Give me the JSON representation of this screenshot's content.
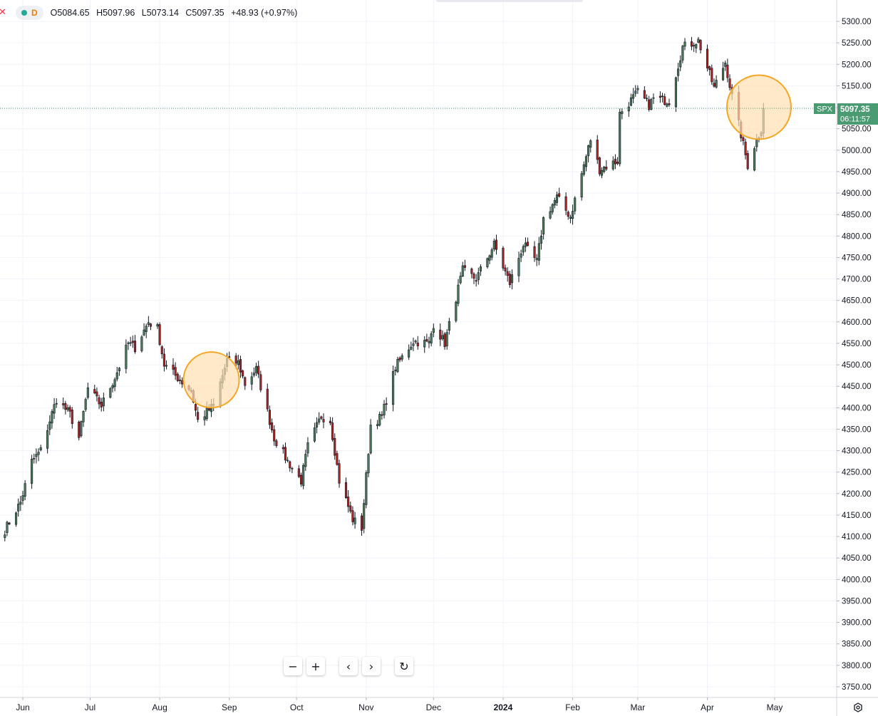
{
  "legend": {
    "timeframe": "D",
    "open": "O5084.65",
    "high": "H5097.96",
    "low": "L5073.14",
    "close": "C5097.35",
    "change": "+48.93 (+0.97%)",
    "status_color": "#22ab94"
  },
  "price_label": {
    "symbol": "SPX",
    "price": "5097.35",
    "countdown": "06:11:57",
    "color": "#4a9a72"
  },
  "toolbar": {
    "zoom_out": "−",
    "zoom_in": "+",
    "scroll_left": "‹",
    "scroll_right": "›",
    "reset": "↻"
  },
  "colors": {
    "up": "#4a7c59",
    "down": "#b22222",
    "grid": "#f0f3fa",
    "highlight_fill": "#ffe0b2",
    "highlight_stroke": "#f5a623"
  },
  "chart_data": {
    "type": "candlestick",
    "y_ticks": [
      "5300.00",
      "5250.00",
      "5200.00",
      "5150.00",
      "5100.00",
      "5050.00",
      "5000.00",
      "4950.00",
      "4900.00",
      "4850.00",
      "4800.00",
      "4750.00",
      "4700.00",
      "4650.00",
      "4600.00",
      "4550.00",
      "4500.00",
      "4450.00",
      "4400.00",
      "4350.00",
      "4300.00",
      "4250.00",
      "4200.00",
      "4150.00",
      "4100.00",
      "4050.00",
      "4000.00",
      "3950.00",
      "3900.00",
      "3850.00",
      "3800.00",
      "3750.00"
    ],
    "ylim": [
      3730,
      5320
    ],
    "x_ticks": [
      {
        "label": "Jun",
        "date": "2023-06-01"
      },
      {
        "label": "Jul",
        "date": "2023-07-01"
      },
      {
        "label": "Aug",
        "date": "2023-08-01"
      },
      {
        "label": "Sep",
        "date": "2023-09-01"
      },
      {
        "label": "Oct",
        "date": "2023-10-01"
      },
      {
        "label": "Nov",
        "date": "2023-11-01"
      },
      {
        "label": "Dec",
        "date": "2023-12-01"
      },
      {
        "label": "2024",
        "date": "2024-01-01"
      },
      {
        "label": "Feb",
        "date": "2024-02-01"
      },
      {
        "label": "Mar",
        "date": "2024-03-01"
      },
      {
        "label": "Apr",
        "date": "2024-04-01"
      },
      {
        "label": "May",
        "date": "2024-05-01"
      }
    ],
    "current_price": 5097.35,
    "waypoints": [
      [
        "2023-05-24",
        4115
      ],
      [
        "2023-05-31",
        4180
      ],
      [
        "2023-06-05",
        4275
      ],
      [
        "2023-06-09",
        4300
      ],
      [
        "2023-06-13",
        4370
      ],
      [
        "2023-06-16",
        4420
      ],
      [
        "2023-06-22",
        4385
      ],
      [
        "2023-06-26",
        4330
      ],
      [
        "2023-06-30",
        4445
      ],
      [
        "2023-07-06",
        4405
      ],
      [
        "2023-07-12",
        4470
      ],
      [
        "2023-07-18",
        4550
      ],
      [
        "2023-07-21",
        4540
      ],
      [
        "2023-07-27",
        4600
      ],
      [
        "2023-07-31",
        4585
      ],
      [
        "2023-08-03",
        4500
      ],
      [
        "2023-08-10",
        4465
      ],
      [
        "2023-08-15",
        4440
      ],
      [
        "2023-08-18",
        4370
      ],
      [
        "2023-08-25",
        4405
      ],
      [
        "2023-08-31",
        4510
      ],
      [
        "2023-09-05",
        4505
      ],
      [
        "2023-09-08",
        4455
      ],
      [
        "2023-09-13",
        4490
      ],
      [
        "2023-09-15",
        4450
      ],
      [
        "2023-09-21",
        4330
      ],
      [
        "2023-09-27",
        4275
      ],
      [
        "2023-10-03",
        4230
      ],
      [
        "2023-10-06",
        4310
      ],
      [
        "2023-10-12",
        4380
      ],
      [
        "2023-10-16",
        4370
      ],
      [
        "2023-10-20",
        4230
      ],
      [
        "2023-10-26",
        4140
      ],
      [
        "2023-10-30",
        4120
      ],
      [
        "2023-11-03",
        4360
      ],
      [
        "2023-11-08",
        4380
      ],
      [
        "2023-11-14",
        4495
      ],
      [
        "2023-11-22",
        4555
      ],
      [
        "2023-11-29",
        4550
      ],
      [
        "2023-12-01",
        4595
      ],
      [
        "2023-12-06",
        4550
      ],
      [
        "2023-12-14",
        4720
      ],
      [
        "2023-12-20",
        4700
      ],
      [
        "2023-12-28",
        4780
      ],
      [
        "2024-01-04",
        4690
      ],
      [
        "2024-01-10",
        4780
      ],
      [
        "2024-01-16",
        4740
      ],
      [
        "2024-01-19",
        4840
      ],
      [
        "2024-01-25",
        4890
      ],
      [
        "2024-01-31",
        4845
      ],
      [
        "2024-02-09",
        5025
      ],
      [
        "2024-02-13",
        4955
      ],
      [
        "2024-02-21",
        4975
      ],
      [
        "2024-02-22",
        5085
      ],
      [
        "2024-03-01",
        5135
      ],
      [
        "2024-03-06",
        5105
      ],
      [
        "2024-03-08",
        5120
      ],
      [
        "2024-03-15",
        5115
      ],
      [
        "2024-03-21",
        5240
      ],
      [
        "2024-03-28",
        5255
      ],
      [
        "2024-04-04",
        5145
      ],
      [
        "2024-04-09",
        5205
      ],
      [
        "2024-04-12",
        5125
      ],
      [
        "2024-04-15",
        5060
      ],
      [
        "2024-04-19",
        4965
      ],
      [
        "2024-04-22",
        5010
      ],
      [
        "2024-04-25",
        5050
      ],
      [
        "2024-04-26",
        5097.35
      ]
    ],
    "highlights": [
      {
        "date": "2023-08-24",
        "price": 4465
      },
      {
        "date": "2024-04-24",
        "price": 5100
      }
    ]
  }
}
